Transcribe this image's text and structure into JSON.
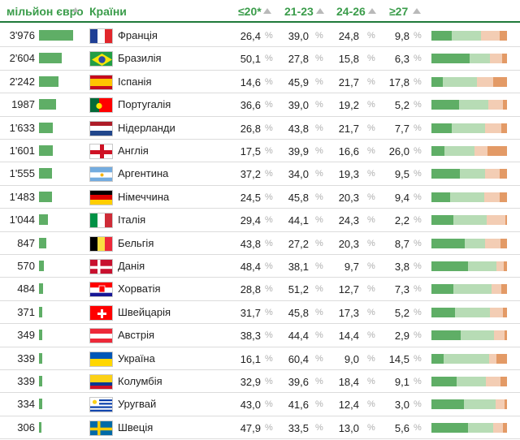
{
  "header": {
    "value_label": "мільйон євро",
    "country_label": "Країни",
    "col1": "≤20*",
    "col2": "21-23",
    "col3": "24-26",
    "col4": "≥27"
  },
  "colors": {
    "bar": "#5fae66",
    "seg1": "#5fae66",
    "seg2": "#b7dcb5",
    "seg3": "#f3cdb4",
    "seg4": "#e39a66"
  },
  "chart_data": {
    "type": "table",
    "columns": [
      "мільйон євро",
      "Країни",
      "≤20*",
      "21-23",
      "24-26",
      "≥27"
    ],
    "rows": [
      {
        "value": "3'976",
        "value_num": 3976,
        "country": "Франція",
        "flag": "france-flag",
        "p1": "26,4",
        "p2": "39,0",
        "p3": "24,8",
        "p4": "9,8"
      },
      {
        "value": "2'604",
        "value_num": 2604,
        "country": "Бразилія",
        "flag": "brazil-flag",
        "p1": "50,1",
        "p2": "27,8",
        "p3": "15,8",
        "p4": "6,3"
      },
      {
        "value": "2'242",
        "value_num": 2242,
        "country": "Іспанія",
        "flag": "spain-flag",
        "p1": "14,6",
        "p2": "45,9",
        "p3": "21,7",
        "p4": "17,8"
      },
      {
        "value": "1987",
        "value_num": 1987,
        "country": "Португалія",
        "flag": "portugal-flag",
        "p1": "36,6",
        "p2": "39,0",
        "p3": "19,2",
        "p4": "5,2"
      },
      {
        "value": "1'633",
        "value_num": 1633,
        "country": "Нідерланди",
        "flag": "netherlands-flag",
        "p1": "26,8",
        "p2": "43,8",
        "p3": "21,7",
        "p4": "7,7"
      },
      {
        "value": "1'601",
        "value_num": 1601,
        "country": "Англія",
        "flag": "england-flag",
        "p1": "17,5",
        "p2": "39,9",
        "p3": "16,6",
        "p4": "26,0"
      },
      {
        "value": "1'555",
        "value_num": 1555,
        "country": "Аргентина",
        "flag": "argentina-flag",
        "p1": "37,2",
        "p2": "34,0",
        "p3": "19,3",
        "p4": "9,5"
      },
      {
        "value": "1'483",
        "value_num": 1483,
        "country": "Німеччина",
        "flag": "germany-flag",
        "p1": "24,5",
        "p2": "45,8",
        "p3": "20,3",
        "p4": "9,4"
      },
      {
        "value": "1'044",
        "value_num": 1044,
        "country": "Італія",
        "flag": "italy-flag",
        "p1": "29,4",
        "p2": "44,1",
        "p3": "24,3",
        "p4": "2,2"
      },
      {
        "value": "847",
        "value_num": 847,
        "country": "Бельгія",
        "flag": "belgium-flag",
        "p1": "43,8",
        "p2": "27,2",
        "p3": "20,3",
        "p4": "8,7"
      },
      {
        "value": "570",
        "value_num": 570,
        "country": "Данія",
        "flag": "denmark-flag",
        "p1": "48,4",
        "p2": "38,1",
        "p3": "9,7",
        "p4": "3,8"
      },
      {
        "value": "484",
        "value_num": 484,
        "country": "Хорватія",
        "flag": "croatia-flag",
        "p1": "28,8",
        "p2": "51,2",
        "p3": "12,7",
        "p4": "7,3"
      },
      {
        "value": "371",
        "value_num": 371,
        "country": "Швейцарія",
        "flag": "switzerland-flag",
        "p1": "31,7",
        "p2": "45,8",
        "p3": "17,3",
        "p4": "5,2"
      },
      {
        "value": "349",
        "value_num": 349,
        "country": "Австрія",
        "flag": "austria-flag",
        "p1": "38,3",
        "p2": "44,4",
        "p3": "14,4",
        "p4": "2,9"
      },
      {
        "value": "339",
        "value_num": 339,
        "country": "Україна",
        "flag": "ukraine-flag",
        "p1": "16,1",
        "p2": "60,4",
        "p3": "9,0",
        "p4": "14,5"
      },
      {
        "value": "339",
        "value_num": 339,
        "country": "Колумбія",
        "flag": "colombia-flag",
        "p1": "32,9",
        "p2": "39,6",
        "p3": "18,4",
        "p4": "9,1"
      },
      {
        "value": "334",
        "value_num": 334,
        "country": "Уругвай",
        "flag": "uruguay-flag",
        "p1": "43,0",
        "p2": "41,6",
        "p3": "12,4",
        "p4": "3,0"
      },
      {
        "value": "306",
        "value_num": 306,
        "country": "Швеція",
        "flag": "sweden-flag",
        "p1": "47,9",
        "p2": "33,5",
        "p3": "13,0",
        "p4": "5,6"
      }
    ],
    "percent_sign": "%",
    "value_max": 3976
  }
}
